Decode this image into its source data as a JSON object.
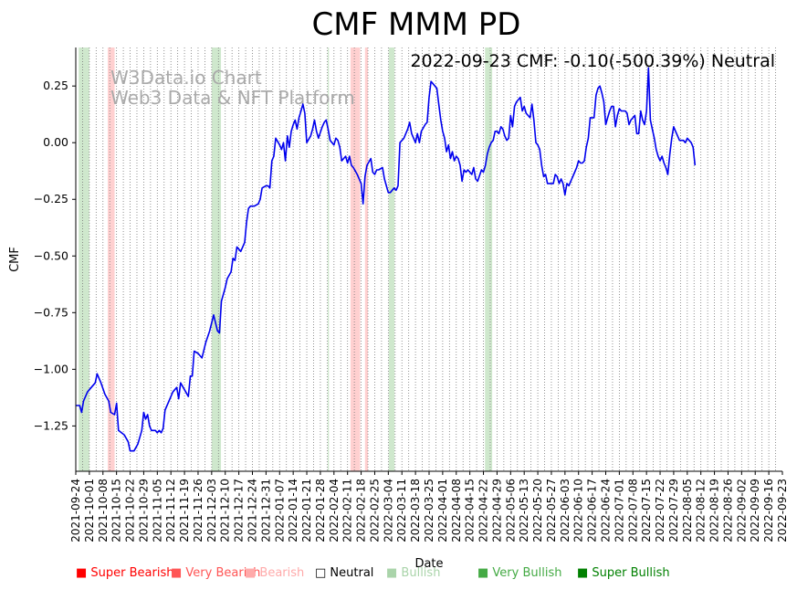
{
  "chart_data": {
    "type": "line",
    "title": "CMF MMM PD",
    "annotation": "2022-09-23 CMF: -0.10(-500.39%) Neutral",
    "watermark": [
      "W3Data.io Chart",
      "Web3 Data & NFT Platform"
    ],
    "xlabel": "Date",
    "ylabel": "CMF",
    "x_start": "2021-09-24",
    "x_end": "2022-09-23",
    "ylim": [
      -1.45,
      0.42
    ],
    "yticks": [
      0.25,
      0.0,
      -0.25,
      -0.5,
      -0.75,
      -1.0,
      -1.25
    ],
    "ytick_labels": [
      "0.25",
      "0.00",
      "−0.25",
      "−0.50",
      "−0.75",
      "−1.00",
      "−1.25"
    ],
    "xtick_labels": [
      "2021-09-24",
      "2021-10-01",
      "2021-10-08",
      "2021-10-15",
      "2021-10-22",
      "2021-10-29",
      "2021-11-05",
      "2021-11-12",
      "2021-11-19",
      "2021-11-26",
      "2021-12-03",
      "2021-12-10",
      "2021-12-17",
      "2021-12-24",
      "2021-12-31",
      "2022-01-07",
      "2022-01-14",
      "2022-01-21",
      "2022-01-28",
      "2022-02-04",
      "2022-02-11",
      "2022-02-18",
      "2022-02-25",
      "2022-03-04",
      "2022-03-11",
      "2022-03-18",
      "2022-03-25",
      "2022-04-01",
      "2022-04-08",
      "2022-04-15",
      "2022-04-22",
      "2022-04-29",
      "2022-05-06",
      "2022-05-13",
      "2022-05-20",
      "2022-05-27",
      "2022-06-03",
      "2022-06-10",
      "2022-06-17",
      "2022-06-24",
      "2022-07-01",
      "2022-07-08",
      "2022-07-15",
      "2022-07-22",
      "2022-07-29",
      "2022-08-05",
      "2022-08-12",
      "2022-08-19",
      "2022-08-26",
      "2022-09-02",
      "2022-09-09",
      "2022-09-16",
      "2022-09-23"
    ],
    "series": [
      {
        "name": "CMF",
        "color": "#0000ee",
        "points": [
          [
            0,
            -1.16
          ],
          [
            2,
            -1.16
          ],
          [
            3,
            -1.19
          ],
          [
            4,
            -1.14
          ],
          [
            6,
            -1.1
          ],
          [
            8,
            -1.08
          ],
          [
            10,
            -1.06
          ],
          [
            11,
            -1.02
          ],
          [
            13,
            -1.06
          ],
          [
            15,
            -1.11
          ],
          [
            17,
            -1.14
          ],
          [
            18,
            -1.19
          ],
          [
            20,
            -1.2
          ],
          [
            21,
            -1.15
          ],
          [
            22,
            -1.27
          ],
          [
            25,
            -1.29
          ],
          [
            27,
            -1.32
          ],
          [
            28,
            -1.36
          ],
          [
            30,
            -1.36
          ],
          [
            32,
            -1.33
          ],
          [
            34,
            -1.27
          ],
          [
            35,
            -1.19
          ],
          [
            36,
            -1.22
          ],
          [
            37,
            -1.2
          ],
          [
            38,
            -1.25
          ],
          [
            39,
            -1.27
          ],
          [
            41,
            -1.27
          ],
          [
            42,
            -1.28
          ],
          [
            43,
            -1.27
          ],
          [
            44,
            -1.28
          ],
          [
            45,
            -1.26
          ],
          [
            46,
            -1.18
          ],
          [
            48,
            -1.14
          ],
          [
            50,
            -1.1
          ],
          [
            52,
            -1.08
          ],
          [
            53,
            -1.13
          ],
          [
            54,
            -1.06
          ],
          [
            56,
            -1.09
          ],
          [
            58,
            -1.12
          ],
          [
            59,
            -1.03
          ],
          [
            60,
            -1.03
          ],
          [
            61,
            -0.92
          ],
          [
            63,
            -0.93
          ],
          [
            65,
            -0.95
          ],
          [
            67,
            -0.88
          ],
          [
            69,
            -0.83
          ],
          [
            71,
            -0.76
          ],
          [
            73,
            -0.83
          ],
          [
            74,
            -0.84
          ],
          [
            75,
            -0.7
          ],
          [
            77,
            -0.64
          ],
          [
            78,
            -0.6
          ],
          [
            80,
            -0.57
          ],
          [
            81,
            -0.51
          ],
          [
            82,
            -0.52
          ],
          [
            83,
            -0.46
          ],
          [
            85,
            -0.48
          ],
          [
            87,
            -0.44
          ],
          [
            88,
            -0.35
          ],
          [
            89,
            -0.29
          ],
          [
            90,
            -0.28
          ],
          [
            92,
            -0.28
          ],
          [
            94,
            -0.27
          ],
          [
            95,
            -0.25
          ],
          [
            96,
            -0.2
          ],
          [
            98,
            -0.19
          ],
          [
            99,
            -0.19
          ],
          [
            100,
            -0.2
          ],
          [
            101,
            -0.08
          ],
          [
            102,
            -0.06
          ],
          [
            103,
            0.02
          ],
          [
            105,
            -0.01
          ],
          [
            106,
            -0.03
          ],
          [
            107,
            0.0
          ],
          [
            108,
            -0.08
          ],
          [
            109,
            0.03
          ],
          [
            110,
            -0.02
          ],
          [
            111,
            0.05
          ],
          [
            112,
            0.08
          ],
          [
            113,
            0.1
          ],
          [
            114,
            0.06
          ],
          [
            115,
            0.11
          ],
          [
            116,
            0.14
          ],
          [
            117,
            0.17
          ],
          [
            118,
            0.13
          ],
          [
            119,
            0.0
          ],
          [
            121,
            0.03
          ],
          [
            122,
            0.06
          ],
          [
            123,
            0.1
          ],
          [
            124,
            0.05
          ],
          [
            125,
            0.02
          ],
          [
            127,
            0.07
          ],
          [
            128,
            0.09
          ],
          [
            129,
            0.1
          ],
          [
            130,
            0.06
          ],
          [
            131,
            0.01
          ],
          [
            132,
            0.0
          ],
          [
            133,
            -0.01
          ],
          [
            134,
            0.02
          ],
          [
            135,
            0.01
          ],
          [
            136,
            -0.02
          ],
          [
            137,
            -0.08
          ],
          [
            138,
            -0.07
          ],
          [
            139,
            -0.06
          ],
          [
            140,
            -0.09
          ],
          [
            141,
            -0.06
          ],
          [
            142,
            -0.1
          ],
          [
            143,
            -0.11
          ],
          [
            145,
            -0.14
          ],
          [
            147,
            -0.18
          ],
          [
            148,
            -0.27
          ],
          [
            149,
            -0.15
          ],
          [
            150,
            -0.1
          ],
          [
            152,
            -0.07
          ],
          [
            153,
            -0.13
          ],
          [
            154,
            -0.14
          ],
          [
            155,
            -0.12
          ],
          [
            156,
            -0.12
          ],
          [
            158,
            -0.11
          ],
          [
            159,
            -0.16
          ],
          [
            160,
            -0.19
          ],
          [
            161,
            -0.22
          ],
          [
            162,
            -0.22
          ],
          [
            164,
            -0.2
          ],
          [
            165,
            -0.21
          ],
          [
            166,
            -0.19
          ],
          [
            167,
            0.0
          ],
          [
            169,
            0.02
          ],
          [
            171,
            0.06
          ],
          [
            172,
            0.09
          ],
          [
            173,
            0.04
          ],
          [
            175,
            0.0
          ],
          [
            176,
            0.04
          ],
          [
            177,
            0.0
          ],
          [
            178,
            0.05
          ],
          [
            180,
            0.08
          ],
          [
            181,
            0.09
          ],
          [
            182,
            0.2
          ],
          [
            183,
            0.27
          ],
          [
            184,
            0.26
          ],
          [
            186,
            0.24
          ],
          [
            187,
            0.17
          ],
          [
            188,
            0.1
          ],
          [
            189,
            0.05
          ],
          [
            190,
            0.02
          ],
          [
            191,
            -0.04
          ],
          [
            192,
            -0.01
          ],
          [
            193,
            -0.07
          ],
          [
            194,
            -0.04
          ],
          [
            195,
            -0.08
          ],
          [
            196,
            -0.06
          ],
          [
            197,
            -0.07
          ],
          [
            198,
            -0.1
          ],
          [
            199,
            -0.17
          ],
          [
            200,
            -0.12
          ],
          [
            201,
            -0.13
          ],
          [
            202,
            -0.12
          ],
          [
            204,
            -0.14
          ],
          [
            205,
            -0.11
          ],
          [
            206,
            -0.16
          ],
          [
            207,
            -0.17
          ],
          [
            209,
            -0.12
          ],
          [
            210,
            -0.13
          ],
          [
            211,
            -0.1
          ],
          [
            212,
            -0.05
          ],
          [
            213,
            -0.02
          ],
          [
            214,
            0.0
          ],
          [
            215,
            0.01
          ],
          [
            216,
            0.05
          ],
          [
            217,
            0.05
          ],
          [
            218,
            0.04
          ],
          [
            219,
            0.07
          ],
          [
            220,
            0.06
          ],
          [
            221,
            0.03
          ],
          [
            222,
            0.01
          ],
          [
            223,
            0.02
          ],
          [
            224,
            0.12
          ],
          [
            225,
            0.07
          ],
          [
            226,
            0.16
          ],
          [
            227,
            0.18
          ],
          [
            228,
            0.19
          ],
          [
            229,
            0.2
          ],
          [
            230,
            0.14
          ],
          [
            231,
            0.16
          ],
          [
            232,
            0.13
          ],
          [
            233,
            0.12
          ],
          [
            234,
            0.11
          ],
          [
            235,
            0.17
          ],
          [
            236,
            0.1
          ],
          [
            237,
            0.0
          ],
          [
            238,
            -0.01
          ],
          [
            239,
            -0.03
          ],
          [
            240,
            -0.1
          ],
          [
            241,
            -0.15
          ],
          [
            242,
            -0.14
          ],
          [
            243,
            -0.18
          ],
          [
            245,
            -0.18
          ],
          [
            246,
            -0.18
          ],
          [
            247,
            -0.14
          ],
          [
            248,
            -0.15
          ],
          [
            249,
            -0.18
          ],
          [
            250,
            -0.16
          ],
          [
            251,
            -0.18
          ],
          [
            252,
            -0.23
          ],
          [
            253,
            -0.18
          ],
          [
            254,
            -0.19
          ],
          [
            255,
            -0.17
          ],
          [
            256,
            -0.15
          ],
          [
            257,
            -0.13
          ],
          [
            258,
            -0.11
          ],
          [
            259,
            -0.08
          ],
          [
            260,
            -0.09
          ],
          [
            261,
            -0.09
          ],
          [
            262,
            -0.08
          ],
          [
            263,
            -0.02
          ],
          [
            264,
            0.02
          ],
          [
            265,
            0.11
          ],
          [
            266,
            0.11
          ],
          [
            267,
            0.11
          ],
          [
            268,
            0.21
          ],
          [
            269,
            0.24
          ],
          [
            270,
            0.25
          ],
          [
            271,
            0.22
          ],
          [
            272,
            0.18
          ],
          [
            273,
            0.08
          ],
          [
            274,
            0.11
          ],
          [
            275,
            0.14
          ],
          [
            276,
            0.16
          ],
          [
            277,
            0.16
          ],
          [
            278,
            0.07
          ],
          [
            279,
            0.12
          ],
          [
            280,
            0.15
          ],
          [
            281,
            0.14
          ],
          [
            283,
            0.14
          ],
          [
            284,
            0.13
          ],
          [
            285,
            0.08
          ],
          [
            286,
            0.1
          ],
          [
            287,
            0.11
          ],
          [
            288,
            0.12
          ],
          [
            289,
            0.04
          ],
          [
            290,
            0.04
          ],
          [
            291,
            0.14
          ],
          [
            292,
            0.1
          ],
          [
            293,
            0.08
          ],
          [
            294,
            0.14
          ],
          [
            295,
            0.33
          ],
          [
            296,
            0.1
          ],
          [
            297,
            0.06
          ],
          [
            298,
            0.02
          ],
          [
            299,
            -0.03
          ],
          [
            300,
            -0.06
          ],
          [
            301,
            -0.08
          ],
          [
            302,
            -0.06
          ],
          [
            303,
            -0.09
          ],
          [
            304,
            -0.11
          ],
          [
            305,
            -0.14
          ],
          [
            306,
            -0.05
          ],
          [
            307,
            0.02
          ],
          [
            308,
            0.07
          ],
          [
            309,
            0.05
          ],
          [
            310,
            0.03
          ],
          [
            311,
            0.01
          ],
          [
            312,
            0.01
          ],
          [
            313,
            0.01
          ],
          [
            314,
            0.0
          ],
          [
            315,
            0.02
          ],
          [
            316,
            0.01
          ],
          [
            317,
            0.0
          ],
          [
            318,
            -0.02
          ],
          [
            319,
            -0.1
          ]
        ]
      }
    ],
    "vlines_step_days": 3.5,
    "shaded_regions": [
      {
        "label": "Bullish",
        "color": "#cfe8cd",
        "start": 1.5,
        "end": 7
      },
      {
        "label": "Bearish",
        "color": "#ffd0d0",
        "start": 16.5,
        "end": 20
      },
      {
        "label": "Bullish",
        "color": "#cfe8cd",
        "start": 70,
        "end": 74.8
      },
      {
        "label": "Bullish",
        "color": "#cfe8cd",
        "start": 129.8,
        "end": 130.4
      },
      {
        "label": "Bearish",
        "color": "#ffd0d0",
        "start": 141.5,
        "end": 146.5
      },
      {
        "label": "Bearish",
        "color": "#ffd0d0",
        "start": 149,
        "end": 150.5
      },
      {
        "label": "Bullish",
        "color": "#cfe8cd",
        "start": 161.2,
        "end": 164.2
      },
      {
        "label": "Bullish",
        "color": "#cfe8cd",
        "start": 210.8,
        "end": 214.5
      }
    ],
    "legend": [
      {
        "label": "Super Bearish",
        "color": "#ff0000",
        "marker": "■"
      },
      {
        "label": "Very Bearish",
        "color": "#ff5555",
        "marker": "■"
      },
      {
        "label": "Bearish",
        "color": "#ffaaaa",
        "marker": "■"
      },
      {
        "label": "Neutral",
        "color": "#000000",
        "marker": "□"
      },
      {
        "label": "Bullish",
        "color": "#aad4aa",
        "marker": "■"
      },
      {
        "label": "Very Bullish",
        "color": "#44aa44",
        "marker": "■"
      },
      {
        "label": "Super Bullish",
        "color": "#008000",
        "marker": "■"
      }
    ]
  }
}
